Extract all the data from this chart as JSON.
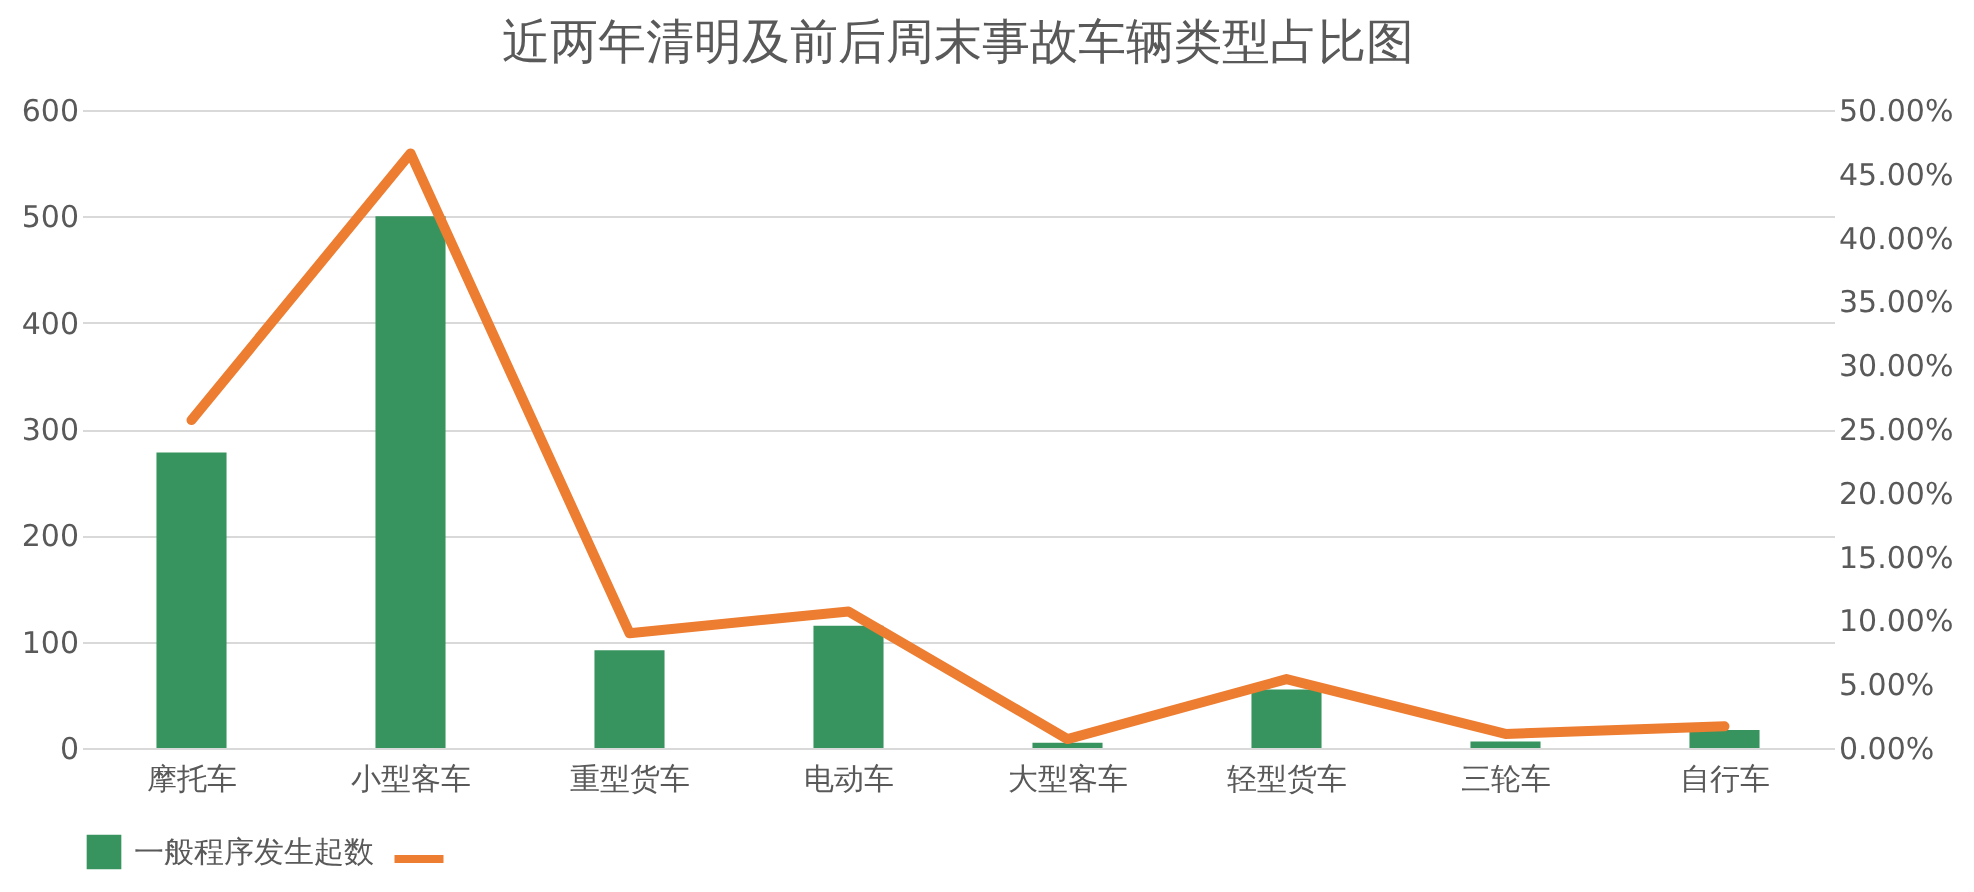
{
  "chart_data": {
    "type": "bar",
    "title": "近两年清明及前后周末事故车辆类型占比图",
    "categories": [
      "摩托车",
      "小型客车",
      "重型货车",
      "电动车",
      "大型客车",
      "轻型货车",
      "三轮车",
      "自行车"
    ],
    "series": [
      {
        "name": "一般程序发生起数",
        "color": "#38945f",
        "values": [
          278,
          500,
          92,
          115,
          5,
          55,
          6,
          17
        ]
      },
      {
        "type": "line",
        "axis": "y2",
        "color": "#ed7d31",
        "values": [
          25.7,
          46.6,
          9.0,
          10.7,
          0.7,
          5.4,
          1.1,
          1.7
        ]
      }
    ],
    "ylim": [
      0,
      600
    ],
    "yticks": [
      0,
      100,
      200,
      300,
      400,
      500,
      600
    ],
    "y2lim": [
      0,
      50
    ],
    "y2ticks": [
      {
        "value": 0,
        "label": "0.00%"
      },
      {
        "value": 5,
        "label": "5.00%"
      },
      {
        "value": 10,
        "label": "10.00%"
      },
      {
        "value": 15,
        "label": "15.00%"
      },
      {
        "value": 20,
        "label": "20.00%"
      },
      {
        "value": 25,
        "label": "25.00%"
      },
      {
        "value": 30,
        "label": "30.00%"
      },
      {
        "value": 35,
        "label": "35.00%"
      },
      {
        "value": 40,
        "label": "40.00%"
      },
      {
        "value": 45,
        "label": "45.00%"
      },
      {
        "value": 50,
        "label": "50.00%"
      }
    ],
    "grid": "y",
    "legend": "bottom",
    "marker": "none",
    "line_style": "solid"
  }
}
